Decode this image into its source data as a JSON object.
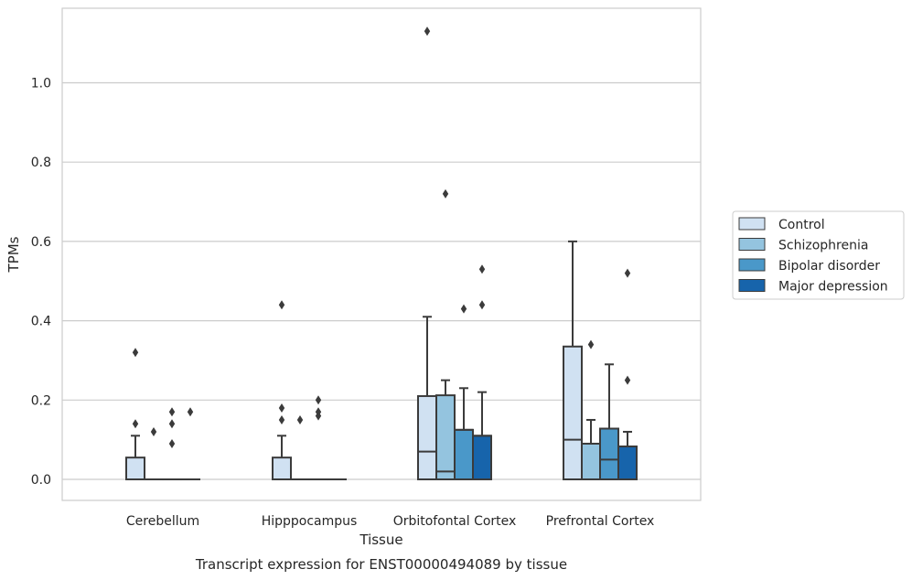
{
  "chart_data": {
    "type": "box",
    "title": "Transcript expression for ENST00000494089 by tissue",
    "xlabel": "Tissue",
    "ylabel": "TPMs",
    "ylim": [
      -0.055,
      1.19
    ],
    "yticks": [
      0.0,
      0.2,
      0.4,
      0.6,
      0.8,
      1.0
    ],
    "ytick_labels": [
      "0.0",
      "0.2",
      "0.4",
      "0.6",
      "0.8",
      "1.0"
    ],
    "grid": "horizontal",
    "legend_position": "right",
    "categories": [
      "Cerebellum",
      "Hipppocampus",
      "Orbitofontal Cortex",
      "Prefrontal Cortex"
    ],
    "series": [
      {
        "name": "Control",
        "color": "#d0e1f2",
        "boxes": [
          {
            "q1": 0.0,
            "median": 0.0,
            "q3": 0.055,
            "whisker_low": 0.0,
            "whisker_high": 0.11,
            "outliers": [
              0.14,
              0.32
            ]
          },
          {
            "q1": 0.0,
            "median": 0.0,
            "q3": 0.055,
            "whisker_low": 0.0,
            "whisker_high": 0.11,
            "outliers": [
              0.15,
              0.18,
              0.44
            ]
          },
          {
            "q1": 0.0,
            "median": 0.07,
            "q3": 0.21,
            "whisker_low": 0.0,
            "whisker_high": 0.41,
            "outliers": [
              1.13
            ]
          },
          {
            "q1": 0.0,
            "median": 0.1,
            "q3": 0.335,
            "whisker_low": 0.0,
            "whisker_high": 0.6,
            "outliers": []
          }
        ]
      },
      {
        "name": "Schizophrenia",
        "color": "#94c4df",
        "boxes": [
          {
            "q1": 0.0,
            "median": 0.0,
            "q3": 0.0,
            "whisker_low": 0.0,
            "whisker_high": 0.0,
            "outliers": [
              0.12
            ]
          },
          {
            "q1": 0.0,
            "median": 0.0,
            "q3": 0.0,
            "whisker_low": 0.0,
            "whisker_high": 0.0,
            "outliers": [
              0.15
            ]
          },
          {
            "q1": 0.0,
            "median": 0.02,
            "q3": 0.212,
            "whisker_low": 0.0,
            "whisker_high": 0.25,
            "outliers": [
              0.72
            ]
          },
          {
            "q1": 0.0,
            "median": 0.09,
            "q3": 0.09,
            "whisker_low": 0.0,
            "whisker_high": 0.15,
            "outliers": [
              0.34
            ]
          }
        ]
      },
      {
        "name": "Bipolar disorder",
        "color": "#4a98c9",
        "boxes": [
          {
            "q1": 0.0,
            "median": 0.0,
            "q3": 0.0,
            "whisker_low": 0.0,
            "whisker_high": 0.0,
            "outliers": [
              0.09,
              0.14,
              0.17
            ]
          },
          {
            "q1": 0.0,
            "median": 0.0,
            "q3": 0.0,
            "whisker_low": 0.0,
            "whisker_high": 0.0,
            "outliers": [
              0.16,
              0.17,
              0.2
            ]
          },
          {
            "q1": 0.0,
            "median": 0.125,
            "q3": 0.125,
            "whisker_low": 0.0,
            "whisker_high": 0.23,
            "outliers": [
              0.43
            ]
          },
          {
            "q1": 0.0,
            "median": 0.05,
            "q3": 0.128,
            "whisker_low": 0.0,
            "whisker_high": 0.29,
            "outliers": []
          }
        ]
      },
      {
        "name": "Major depression",
        "color": "#1764ab",
        "boxes": [
          {
            "q1": 0.0,
            "median": 0.0,
            "q3": 0.0,
            "whisker_low": 0.0,
            "whisker_high": 0.0,
            "outliers": [
              0.17
            ]
          },
          {
            "q1": 0.0,
            "median": 0.0,
            "q3": 0.0,
            "whisker_low": 0.0,
            "whisker_high": 0.0,
            "outliers": []
          },
          {
            "q1": 0.0,
            "median": 0.11,
            "q3": 0.11,
            "whisker_low": 0.0,
            "whisker_high": 0.22,
            "outliers": [
              0.44,
              0.53
            ]
          },
          {
            "q1": 0.0,
            "median": 0.083,
            "q3": 0.083,
            "whisker_low": 0.0,
            "whisker_high": 0.12,
            "outliers": [
              0.25,
              0.52
            ]
          }
        ]
      }
    ]
  }
}
